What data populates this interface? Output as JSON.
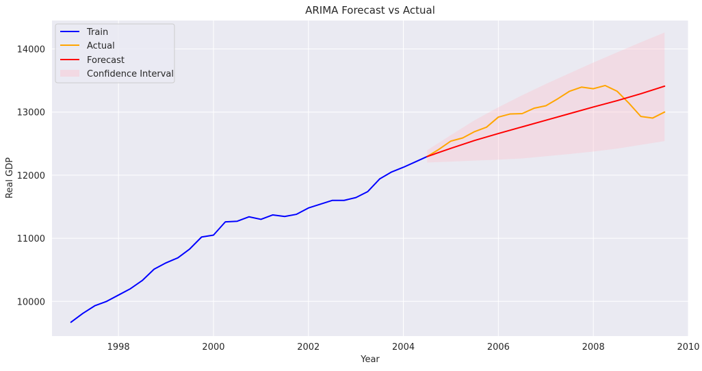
{
  "chart_data": {
    "type": "line",
    "title": "ARIMA Forecast vs Actual",
    "xlabel": "Year",
    "ylabel": "Real GDP",
    "xlim": [
      1996.6,
      2010.0
    ],
    "ylim": [
      9450,
      14450
    ],
    "xticks": [
      1998,
      2000,
      2002,
      2004,
      2006,
      2008,
      2010
    ],
    "yticks": [
      10000,
      11000,
      12000,
      13000,
      14000
    ],
    "grid": true,
    "legend_position": "top-left",
    "series": [
      {
        "name": "Train",
        "color": "#0000ff",
        "x": [
          1997.0,
          1997.25,
          1997.5,
          1997.75,
          1998.0,
          1998.25,
          1998.5,
          1998.75,
          1999.0,
          1999.25,
          1999.5,
          1999.75,
          2000.0,
          2000.25,
          2000.5,
          2000.75,
          2001.0,
          2001.25,
          2001.5,
          2001.75,
          2002.0,
          2002.25,
          2002.5,
          2002.75,
          2003.0,
          2003.25,
          2003.5,
          2003.75,
          2004.0,
          2004.25,
          2004.5
        ],
        "values": [
          9670,
          9810,
          9930,
          10000,
          10100,
          10200,
          10330,
          10510,
          10610,
          10690,
          10830,
          11020,
          11050,
          11260,
          11270,
          11340,
          11300,
          11370,
          11345,
          11380,
          11480,
          11540,
          11600,
          11600,
          11645,
          11740,
          11940,
          12050,
          12125,
          12210,
          12295
        ]
      },
      {
        "name": "Actual",
        "color": "#ffa500",
        "x": [
          2004.5,
          2004.75,
          2005.0,
          2005.25,
          2005.5,
          2005.75,
          2006.0,
          2006.25,
          2006.5,
          2006.75,
          2007.0,
          2007.25,
          2007.5,
          2007.75,
          2008.0,
          2008.25,
          2008.5,
          2008.75,
          2009.0,
          2009.25,
          2009.5
        ],
        "values": [
          12295,
          12410,
          12540,
          12590,
          12690,
          12760,
          12920,
          12970,
          12975,
          13060,
          13100,
          13210,
          13330,
          13395,
          13370,
          13420,
          13330,
          13140,
          12930,
          12905,
          13000
        ]
      },
      {
        "name": "Forecast",
        "color": "#ff0000",
        "x": [
          2004.5,
          2005.0,
          2005.5,
          2006.0,
          2006.5,
          2007.0,
          2007.5,
          2008.0,
          2008.5,
          2009.0,
          2009.5
        ],
        "values": [
          12295,
          12425,
          12550,
          12660,
          12765,
          12870,
          12975,
          13080,
          13180,
          13290,
          13410
        ]
      }
    ],
    "confidence_interval": {
      "name": "Confidence Interval",
      "color": "#ffc0cb",
      "x": [
        2004.5,
        2005.0,
        2005.5,
        2006.0,
        2006.5,
        2007.0,
        2007.5,
        2008.0,
        2008.5,
        2009.0,
        2009.5
      ],
      "lower": [
        12200,
        12215,
        12230,
        12245,
        12265,
        12300,
        12335,
        12375,
        12420,
        12480,
        12540
      ],
      "upper": [
        12395,
        12635,
        12870,
        13075,
        13265,
        13445,
        13615,
        13785,
        13945,
        14105,
        14260
      ]
    }
  }
}
